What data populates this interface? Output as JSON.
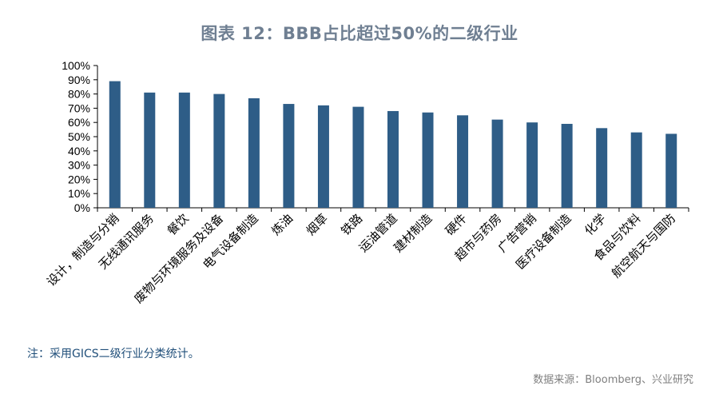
{
  "title": "图表 12：BBB占比超过50%的二级行业",
  "note": "注：采用GICS二级行业分类统计。",
  "source": "数据来源：Bloomberg、兴业研究",
  "colors": {
    "bar": "#2e5d87",
    "axis": "#000000",
    "title": "#6f7f92",
    "note": "#1f4e79",
    "source": "#7f7f7f"
  },
  "chart_data": {
    "type": "bar",
    "title": "图表 12：BBB占比超过50%的二级行业",
    "xlabel": "",
    "ylabel": "",
    "ylim": [
      0,
      100
    ],
    "y_ticks": [
      0,
      10,
      20,
      30,
      40,
      50,
      60,
      70,
      80,
      90,
      100
    ],
    "y_tick_labels": [
      "0%",
      "10%",
      "20%",
      "30%",
      "40%",
      "50%",
      "60%",
      "70%",
      "80%",
      "90%",
      "100%"
    ],
    "grid": false,
    "legend": "none",
    "categories": [
      "设计，制造与分销",
      "无线通讯服务",
      "餐饮",
      "废物与环境服务及设备",
      "电气设备制造",
      "炼油",
      "烟草",
      "铁路",
      "运油管道",
      "建材制造",
      "硬件",
      "超市与药房",
      "广告营销",
      "医疗设备制造",
      "化学",
      "食品与饮料",
      "航空航天与国防"
    ],
    "values": [
      89,
      81,
      81,
      80,
      77,
      73,
      72,
      71,
      68,
      67,
      65,
      62,
      60,
      59,
      56,
      53,
      52
    ]
  }
}
